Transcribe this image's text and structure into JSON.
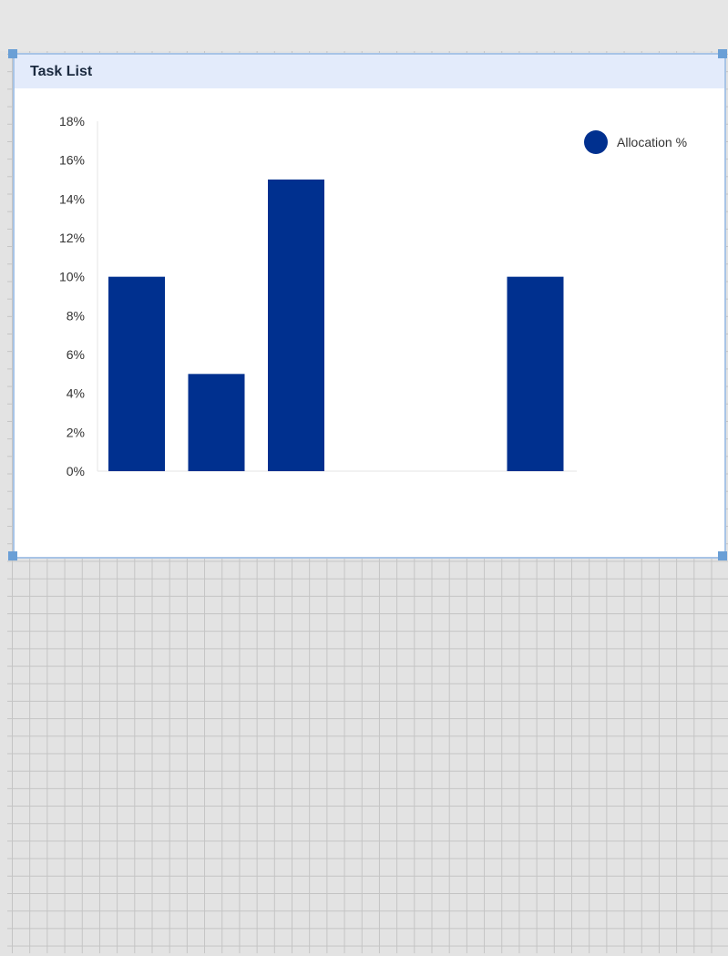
{
  "widget": {
    "title": "Task List"
  },
  "chart_data": {
    "type": "bar",
    "categories": [
      "",
      "",
      "",
      "",
      "",
      ""
    ],
    "series": [
      {
        "name": "Allocation %",
        "values": [
          10,
          5,
          15,
          0,
          0,
          10
        ]
      }
    ],
    "title": "",
    "xlabel": "",
    "ylabel": "",
    "ylim": [
      0,
      18
    ],
    "yticks": [
      "0%",
      "2%",
      "4%",
      "6%",
      "8%",
      "10%",
      "12%",
      "14%",
      "16%",
      "18%"
    ],
    "legend_position": "top-right",
    "grid": false,
    "colors": {
      "bar": "#00308f",
      "axis": "#e6e6e6"
    }
  },
  "colors": {
    "header_bg": "#e3ebfb",
    "selection_border": "#a8c4e6",
    "handle": "#6a9fd6",
    "canvas_bg": "#e3e3e3"
  }
}
